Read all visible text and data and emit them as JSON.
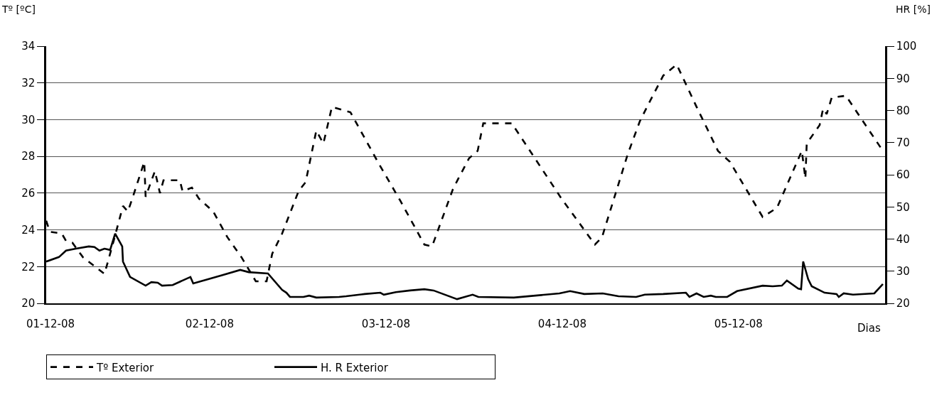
{
  "chart_data": {
    "type": "line",
    "xlabel": "Dias",
    "ylabel": "Tº [ºC]",
    "y2label": "HR [%]",
    "xlim": [
      "--12-01T01:45",
      "--12-05T19:57"
    ],
    "xticks": [
      {
        "value": "--12-01T02:20",
        "label": "01-12-08"
      },
      {
        "value": "--12-02",
        "label": "02-12-08"
      },
      {
        "value": "--12-03",
        "label": "03-12-08"
      },
      {
        "value": "--12-04",
        "label": "04-12-08"
      },
      {
        "value": "--12-05",
        "label": "05-12-08"
      }
    ],
    "ylim": [
      20,
      34
    ],
    "yticks": [
      20,
      22,
      24,
      26,
      28,
      30,
      32,
      34
    ],
    "y2lim": [
      20,
      100
    ],
    "y2ticks": [
      20,
      30,
      40,
      50,
      60,
      70,
      80,
      90,
      100
    ],
    "grid": "y",
    "legend": "bottom left",
    "series": [
      {
        "name": "Tº Exterior",
        "color": "#000000",
        "line_style": "dashed",
        "x": [
          "--12-01T01:45",
          "--12-01T02:14",
          "--12-01T03:52",
          "--12-01T04:27",
          "--12-01T05:19",
          "--12-01T06:46",
          "--12-01T09:41",
          "--12-01T10:56",
          "--12-01T12:12",
          "--12-01T12:52",
          "--12-01T13:33",
          "--12-01T15:06",
          "--12-01T15:17",
          "--12-01T16:33",
          "--12-01T17:14",
          "--12-01T17:43",
          "--12-01T19:56",
          "--12-01T20:19",
          "--12-01T21:35",
          "--12-01T22:33",
          "--12-02T00:29",
          "--12-02T02:25",
          "--12-02T04:21",
          "--12-02T06:17",
          "--12-02T07:45",
          "--12-02T08:31",
          "--12-02T09:52",
          "--12-02T12:06",
          "--12-02T13:04",
          "--12-02T14:31",
          "--12-02T15:29",
          "--12-02T16:39",
          "--12-02T19:10",
          "--12-02T23:02",
          "--12-03T01:56",
          "--12-03T05:14",
          "--12-03T06:17",
          "--12-03T09:06",
          "--12-03T09:52",
          "--12-03T11:19",
          "--12-03T12:29",
          "--12-03T13:15",
          "--12-03T17:08",
          "--12-03T23:54",
          "--12-04T04:27",
          "--12-04T05:25",
          "--12-04T08:54",
          "--12-04T10:33",
          "--12-04T11:48",
          "--12-04T13:45",
          "--12-04T15:35",
          "--12-04T18:17",
          "--12-04T21:12",
          "--12-04T22:50",
          "--12-05T03:17",
          "--12-05T05:14",
          "--12-05T08:37",
          "--12-05T09:06",
          "--12-05T09:17",
          "--12-05T11:02",
          "--12-05T11:31",
          "--12-05T12:00",
          "--12-05T12:41",
          "--12-05T14:37",
          "--12-05T19:39"
        ],
        "values": [
          24.5,
          23.9,
          23.8,
          23.4,
          23.3,
          22.5,
          21.6,
          23.4,
          25.3,
          25.0,
          25.8,
          27.7,
          25.8,
          27.2,
          26.0,
          26.7,
          26.7,
          26.1,
          26.3,
          25.7,
          25.0,
          23.6,
          22.5,
          21.2,
          21.2,
          22.7,
          23.8,
          26.1,
          26.6,
          29.4,
          28.7,
          30.7,
          30.4,
          27.6,
          25.6,
          23.2,
          23.1,
          26.2,
          26.8,
          27.9,
          28.3,
          29.8,
          29.8,
          25.7,
          23.2,
          23.6,
          28.1,
          29.9,
          30.9,
          32.4,
          33.0,
          30.7,
          28.3,
          27.7,
          24.7,
          25.2,
          28.3,
          26.8,
          28.7,
          29.7,
          30.6,
          30.3,
          31.2,
          31.3,
          28.3
        ]
      },
      {
        "name": "H. R Exterior",
        "color": "#000000",
        "line_style": "solid",
        "axis": "y2",
        "x": [
          "--12-01T01:45",
          "--12-01T03:29",
          "--12-01T04:27",
          "--12-01T05:48",
          "--12-01T07:33",
          "--12-01T08:19",
          "--12-01T09:00",
          "--12-01T09:41",
          "--12-01T10:27",
          "--12-01T11:08",
          "--12-01T12:06",
          "--12-01T12:12",
          "--12-01T13:10",
          "--12-01T15:17",
          "--12-01T16:04",
          "--12-01T16:56",
          "--12-01T17:31",
          "--12-01T18:58",
          "--12-01T21:23",
          "--12-01T21:46",
          "--12-01T23:48",
          "--12-02T01:45",
          "--12-02T04:10",
          "--12-02T05:19",
          "--12-02T07:56",
          "--12-02T09:52",
          "--12-02T10:27",
          "--12-02T10:56",
          "--12-02T12:46",
          "--12-02T13:33",
          "--12-02T14:31",
          "--12-02T17:37",
          "--12-02T18:35",
          "--12-02T21:06",
          "--12-02T23:14",
          "--12-02T23:43",
          "--12-03T01:21",
          "--12-03T03:17",
          "--12-03T05:14",
          "--12-03T06:29",
          "--12-03T09:41",
          "--12-03T11:48",
          "--12-03T12:35",
          "--12-03T17:25",
          "--12-03T23:37",
          "--12-04T01:04",
          "--12-04T03:00",
          "--12-04T05:31",
          "--12-04T07:39",
          "--12-04T10:04",
          "--12-04T11:14",
          "--12-04T13:45",
          "--12-04T16:50",
          "--12-04T17:19",
          "--12-04T18:17",
          "--12-04T19:15",
          "--12-04T20:14",
          "--12-04T20:54",
          "--12-04T22:27",
          "--12-04T23:48",
          "--12-05T03:17",
          "--12-05T04:39",
          "--12-05T05:54",
          "--12-05T06:35",
          "--12-05T08:08",
          "--12-05T08:31",
          "--12-05T08:48",
          "--12-05T09:29",
          "--12-05T09:58",
          "--12-05T11:43",
          "--12-05T13:21",
          "--12-05T13:39",
          "--12-05T14:19",
          "--12-05T15:35",
          "--12-05T18:29",
          "--12-05T19:39"
        ],
        "values": [
          33.0,
          34.4,
          36.4,
          37.0,
          37.7,
          37.5,
          36.4,
          37.0,
          36.6,
          41.7,
          37.7,
          33.0,
          28.2,
          25.5,
          26.6,
          26.4,
          25.5,
          25.7,
          28.2,
          26.2,
          27.5,
          28.8,
          30.4,
          29.7,
          29.3,
          24.2,
          23.3,
          22.0,
          22.0,
          22.4,
          21.8,
          22.0,
          22.2,
          22.9,
          23.3,
          22.7,
          23.5,
          24.0,
          24.4,
          24.0,
          21.3,
          22.7,
          22.0,
          21.8,
          23.1,
          23.8,
          22.9,
          23.1,
          22.2,
          22.0,
          22.7,
          22.9,
          23.3,
          22.0,
          23.1,
          22.0,
          22.4,
          22.0,
          22.0,
          23.8,
          25.5,
          25.3,
          25.5,
          27.1,
          24.6,
          24.4,
          33.0,
          27.5,
          25.3,
          23.3,
          22.9,
          22.0,
          23.1,
          22.7,
          23.1,
          26.0
        ]
      }
    ]
  }
}
